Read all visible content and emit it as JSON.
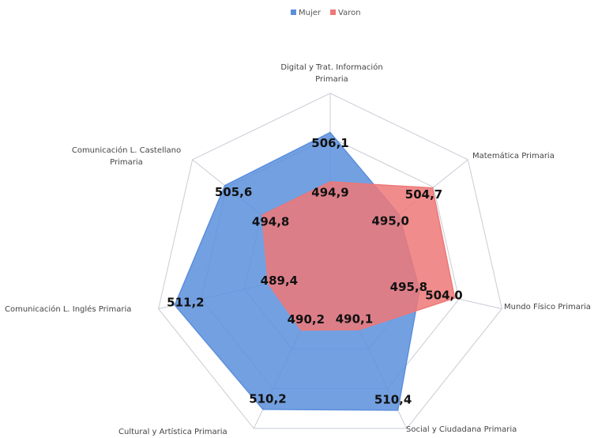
{
  "chart_data": {
    "type": "radar",
    "categories": [
      "Digital y Trat. Información Primaria",
      "Matemática Primaria",
      "Mundo Físico Primaria",
      "Social y Ciudadana Primaria",
      "Cultural y Artística Primaria",
      "Comunicación L. Inglés Primaria",
      "Comunicación L. Castellano Primaria"
    ],
    "series": [
      {
        "name": "Mujer",
        "color": "#5b8fdc",
        "values": [
          506.1,
          495.0,
          495.8,
          510.4,
          510.2,
          511.2,
          505.6
        ],
        "value_labels": [
          "506,1",
          "495,0",
          "495,8",
          "510,4",
          "510,2",
          "511,2",
          "505,6"
        ]
      },
      {
        "name": "Varon",
        "color": "#ee7878",
        "values": [
          494.9,
          504.7,
          504.0,
          490.1,
          490.2,
          489.4,
          494.8
        ],
        "value_labels": [
          "494,9",
          "504,7",
          "504,0",
          "490,1",
          "490,2",
          "489,4",
          "494,8"
        ]
      }
    ],
    "ylim": [
      475,
      515
    ],
    "yticks": [
      475,
      485,
      495,
      505,
      515
    ],
    "grid": true,
    "legend": "top"
  }
}
